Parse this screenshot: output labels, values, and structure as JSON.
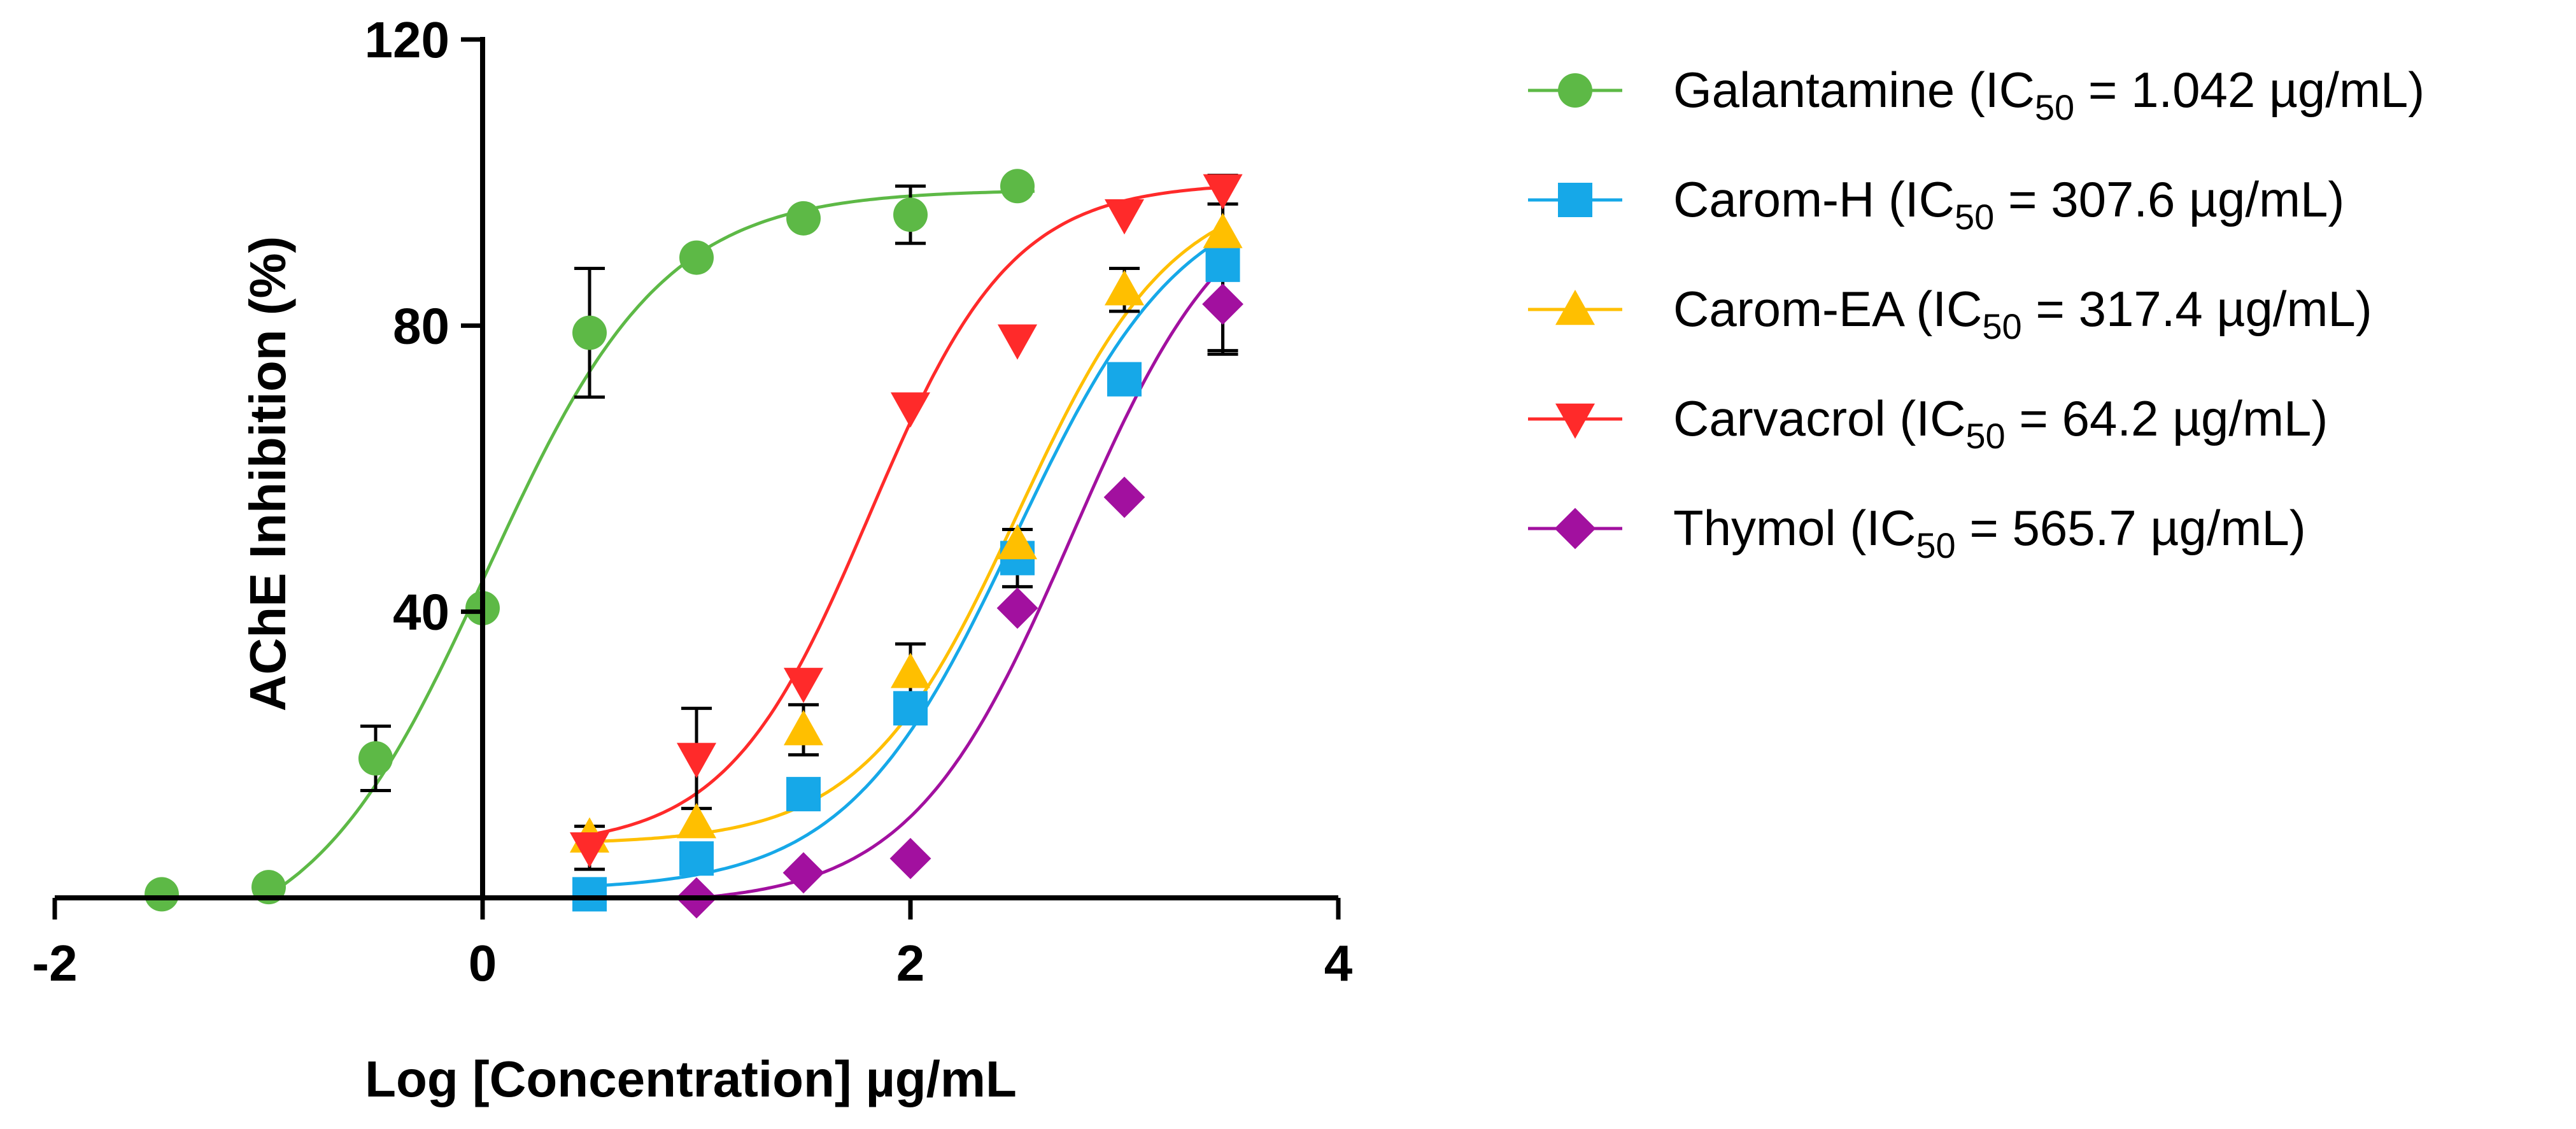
{
  "chart_data": {
    "type": "scatter",
    "title": "",
    "xlabel": "Log [Concentration] µg/mL",
    "ylabel": "AChE Inhibition (%)",
    "xlim": [
      -2,
      4
    ],
    "ylim": [
      0,
      120
    ],
    "x_ticks": [
      -2,
      0,
      2,
      4
    ],
    "y_ticks": [
      40,
      80,
      120
    ],
    "x_tick_labels": [
      "-2",
      "0",
      "2",
      "4"
    ],
    "y_tick_labels": [
      "40",
      "80",
      "120"
    ],
    "grid": false,
    "legend_position": "right",
    "series": [
      {
        "key": "galantamine",
        "name": "Galantamine",
        "ic50_label": " = 1.042 µg/mL)",
        "color": "#5DB946",
        "marker": "circle",
        "x": [
          -1.5,
          -1.0,
          -0.5,
          0.0,
          0.5,
          1.0,
          1.5,
          2.0,
          2.5
        ],
        "y": [
          0.5,
          1.5,
          19.5,
          40.5,
          79.0,
          89.5,
          95.0,
          95.5,
          99.5
        ],
        "err": [
          0,
          0,
          4.5,
          0,
          9,
          0,
          0,
          4,
          0
        ],
        "fit": {
          "bottom": -8,
          "top": 99,
          "logIC50": 0.018,
          "hill": 1.05
        }
      },
      {
        "key": "carom-h",
        "name": "Carom-H",
        "ic50_label": " = 307.6 µg/mL)",
        "color": "#16A8E8",
        "marker": "square",
        "x": [
          0.5,
          1.0,
          1.5,
          2.0,
          2.5,
          3.0,
          3.46
        ],
        "y": [
          0.5,
          5.5,
          14.5,
          26.5,
          47.5,
          72.5,
          88.5
        ],
        "err": [
          0,
          0,
          0,
          0,
          4,
          0,
          12
        ],
        "fit": {
          "bottom": 1,
          "top": 100,
          "logIC50": 2.488,
          "hill": 1.1
        }
      },
      {
        "key": "carom-ea",
        "name": "Carom-EA",
        "ic50_label": " = 317.4 µg/mL)",
        "color": "#FFBF00",
        "marker": "triangle-up",
        "x": [
          0.5,
          1.0,
          1.5,
          2.0,
          2.5,
          3.0,
          3.46
        ],
        "y": [
          8.5,
          10.5,
          23.5,
          31.5,
          49.5,
          85.0,
          93.0
        ],
        "err": [
          0,
          0,
          3.5,
          4,
          0,
          3,
          0
        ],
        "fit": {
          "bottom": 7.5,
          "top": 100,
          "logIC50": 2.502,
          "hill": 1.2
        }
      },
      {
        "key": "carvacrol",
        "name": "Carvacrol",
        "ic50_label": " = 64.2 µg/mL)",
        "color": "#FF2A2A",
        "marker": "triangle-down",
        "x": [
          0.5,
          1.0,
          1.5,
          2.0,
          2.5,
          3.0,
          3.46
        ],
        "y": [
          7.0,
          19.5,
          30.0,
          68.5,
          78.0,
          95.5,
          99.0
        ],
        "err": [
          3,
          7,
          0,
          0,
          0,
          0,
          2
        ],
        "fit": {
          "bottom": 7,
          "top": 100,
          "logIC50": 1.808,
          "hill": 1.3
        }
      },
      {
        "key": "thymol",
        "name": "Thymol",
        "ic50_label": " = 565.7 µg/mL)",
        "color": "#A2109F",
        "marker": "diamond",
        "x": [
          1.0,
          1.5,
          2.0,
          2.5,
          3.0,
          3.46
        ],
        "y": [
          0.0,
          3.5,
          5.5,
          40.5,
          56.0,
          83.0
        ],
        "err": [
          0,
          0,
          0,
          0,
          0,
          7
        ],
        "fit": {
          "bottom": -1,
          "top": 102,
          "logIC50": 2.753,
          "hill": 1.15
        }
      }
    ]
  }
}
